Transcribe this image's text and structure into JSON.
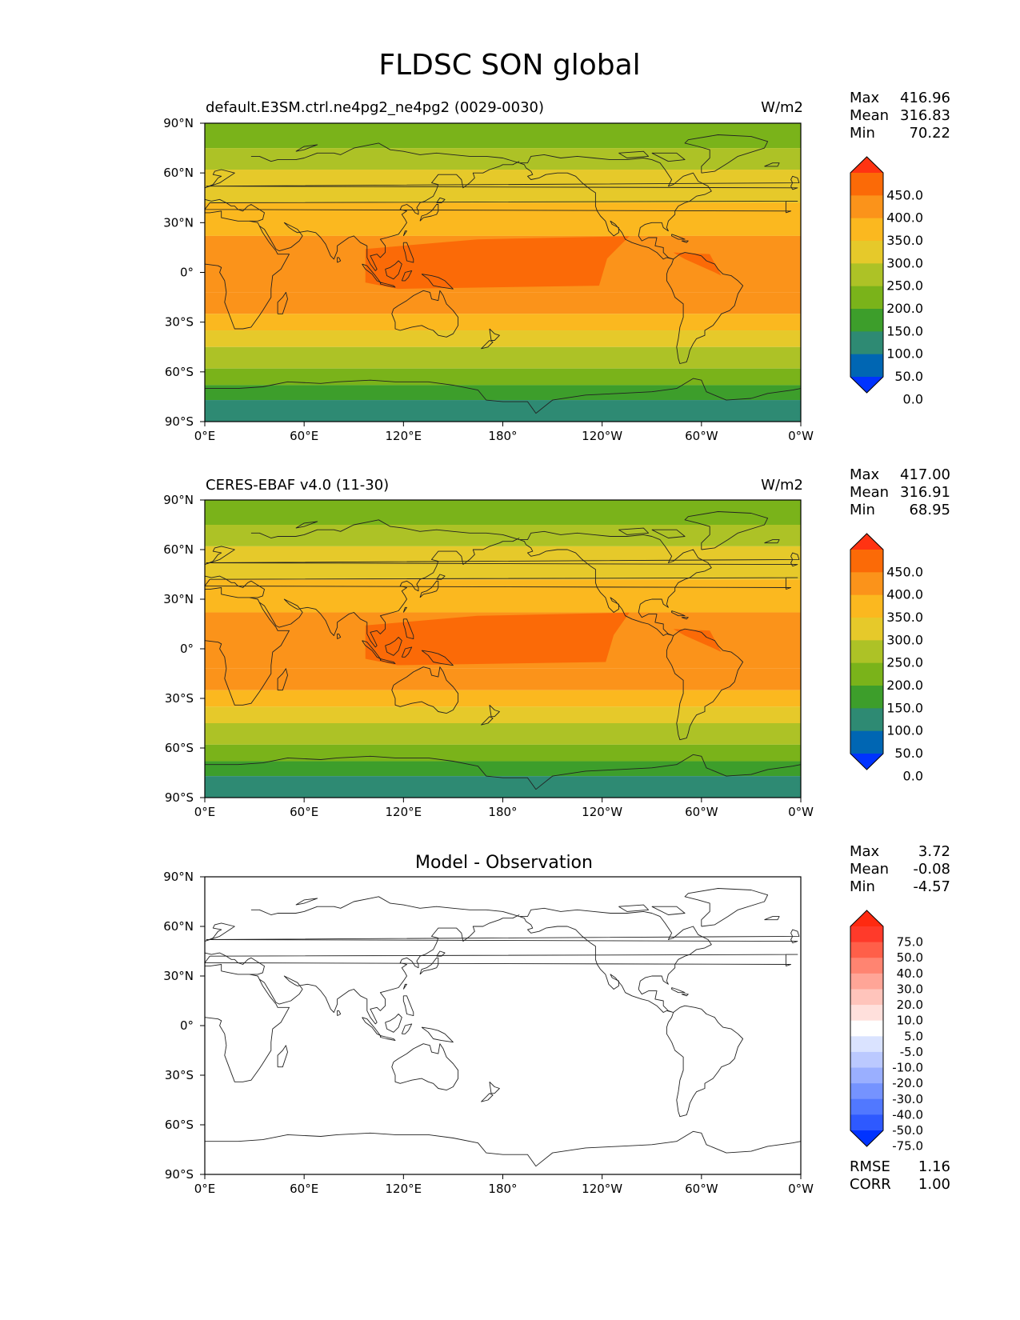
{
  "figure_title": "FLDSC SON global",
  "colors": {
    "abs_levels": [
      "#0033ff",
      "#0066b3",
      "#2e8a73",
      "#3d9e2b",
      "#7ab31a",
      "#adc226",
      "#e6c92a",
      "#fbb81f",
      "#fb931a",
      "#fb6a07",
      "#ff3312"
    ],
    "diff_levels": [
      "#0033ff",
      "#2e59ff",
      "#5178ff",
      "#7593ff",
      "#9aafff",
      "#bbc9ff",
      "#dae3ff",
      "#ffffff",
      "#ffe0dc",
      "#ffc4bb",
      "#ffa597",
      "#ff8471",
      "#ff5f49",
      "#ff3a2a",
      "#ff2a10"
    ]
  },
  "chart_data": [
    {
      "type": "heatmap",
      "name": "test",
      "title": "default.E3SM.ctrl.ne4pg2_ne4pg2 (0029-0030)",
      "units": "W/m2",
      "xticks": [
        "0°E",
        "60°E",
        "120°E",
        "180°",
        "120°W",
        "60°W",
        "0°W"
      ],
      "yticks": [
        "90°N",
        "60°N",
        "30°N",
        "0°",
        "30°S",
        "60°S",
        "90°S"
      ],
      "xlim": [
        0,
        360
      ],
      "ylim": [
        -90,
        90
      ],
      "stats": {
        "labels": [
          "Max",
          "Mean",
          "Min"
        ],
        "values": [
          "416.96",
          "316.83",
          "70.22"
        ]
      },
      "colorbar_labels": [
        "450.0",
        "400.0",
        "350.0",
        "300.0",
        "250.0",
        "200.0",
        "150.0",
        "100.0",
        "50.0",
        "0.0"
      ],
      "bands": [
        {
          "lat_north": 90,
          "lat_south": 75,
          "level": 4
        },
        {
          "lat_north": 75,
          "lat_south": 62,
          "level": 5
        },
        {
          "lat_north": 62,
          "lat_south": 42,
          "level": 6
        },
        {
          "lat_north": 42,
          "lat_south": 22,
          "level": 7
        },
        {
          "lat_north": 22,
          "lat_south": -12,
          "level": 8
        },
        {
          "lat_north": -12,
          "lat_south": -25,
          "level": 8
        },
        {
          "lat_north": -25,
          "lat_south": -35,
          "level": 7
        },
        {
          "lat_north": -35,
          "lat_south": -45,
          "level": 6
        },
        {
          "lat_north": -45,
          "lat_south": -58,
          "level": 5
        },
        {
          "lat_north": -58,
          "lat_south": -68,
          "level": 4
        },
        {
          "lat_north": -68,
          "lat_south": -77,
          "level": 3
        },
        {
          "lat_north": -77,
          "lat_south": -90,
          "level": 2
        }
      ],
      "max_region": {
        "lon_west": 97,
        "lon_east": 243,
        "lat_north": 18,
        "lat_south": -8
      }
    },
    {
      "type": "heatmap",
      "name": "reference",
      "title": "CERES-EBAF v4.0 (11-30)",
      "units": "W/m2",
      "xticks": [
        "0°E",
        "60°E",
        "120°E",
        "180°",
        "120°W",
        "60°W",
        "0°W"
      ],
      "yticks": [
        "90°N",
        "60°N",
        "30°N",
        "0°",
        "30°S",
        "60°S",
        "90°S"
      ],
      "xlim": [
        0,
        360
      ],
      "ylim": [
        -90,
        90
      ],
      "stats": {
        "labels": [
          "Max",
          "Mean",
          "Min"
        ],
        "values": [
          "417.00",
          "316.91",
          "68.95"
        ]
      },
      "colorbar_labels": [
        "450.0",
        "400.0",
        "350.0",
        "300.0",
        "250.0",
        "200.0",
        "150.0",
        "100.0",
        "50.0",
        "0.0"
      ],
      "bands": [
        {
          "lat_north": 90,
          "lat_south": 75,
          "level": 4
        },
        {
          "lat_north": 75,
          "lat_south": 62,
          "level": 5
        },
        {
          "lat_north": 62,
          "lat_south": 42,
          "level": 6
        },
        {
          "lat_north": 42,
          "lat_south": 22,
          "level": 7
        },
        {
          "lat_north": 22,
          "lat_south": -12,
          "level": 8
        },
        {
          "lat_north": -12,
          "lat_south": -25,
          "level": 8
        },
        {
          "lat_north": -25,
          "lat_south": -35,
          "level": 7
        },
        {
          "lat_north": -35,
          "lat_south": -45,
          "level": 6
        },
        {
          "lat_north": -45,
          "lat_south": -58,
          "level": 5
        },
        {
          "lat_north": -58,
          "lat_south": -68,
          "level": 4
        },
        {
          "lat_north": -68,
          "lat_south": -77,
          "level": 3
        },
        {
          "lat_north": -77,
          "lat_south": -90,
          "level": 2
        }
      ],
      "max_region": {
        "lon_west": 97,
        "lon_east": 247,
        "lat_north": 18,
        "lat_south": -8
      }
    },
    {
      "type": "heatmap",
      "name": "difference",
      "title": "Model - Observation",
      "units": "",
      "xticks": [
        "0°E",
        "60°E",
        "120°E",
        "180°",
        "120°W",
        "60°W",
        "0°W"
      ],
      "yticks": [
        "90°N",
        "60°N",
        "30°N",
        "0°",
        "30°S",
        "60°S",
        "90°S"
      ],
      "xlim": [
        0,
        360
      ],
      "ylim": [
        -90,
        90
      ],
      "stats": {
        "labels": [
          "Max",
          "Mean",
          "Min"
        ],
        "values": [
          "3.72",
          "-0.08",
          "-4.57"
        ]
      },
      "colorbar_labels": [
        "75.0",
        "50.0",
        "40.0",
        "30.0",
        "20.0",
        "10.0",
        "5.0",
        "-5.0",
        "-10.0",
        "-20.0",
        "-30.0",
        "-40.0",
        "-50.0",
        "-75.0"
      ],
      "bands": [
        {
          "lat_north": 90,
          "lat_south": -90,
          "level": 7
        }
      ],
      "metrics": {
        "labels": [
          "RMSE",
          "CORR"
        ],
        "values": [
          "1.16",
          "1.00"
        ]
      }
    }
  ]
}
